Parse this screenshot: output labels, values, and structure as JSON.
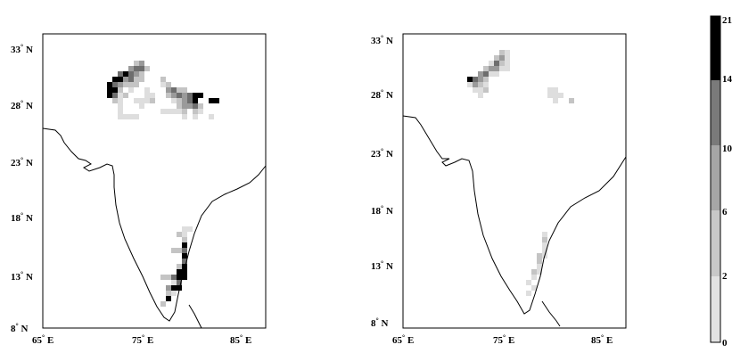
{
  "maps": [
    {
      "name": "left-map",
      "lat_labels": [
        "33",
        "28",
        "23",
        "18",
        "13",
        "8"
      ],
      "lat_suffix": "N",
      "lon_labels": [
        "65",
        "75",
        "85"
      ],
      "lon_suffix": "E",
      "degree": "°"
    },
    {
      "name": "right-map",
      "lat_labels": [
        "33",
        "28",
        "23",
        "18",
        "13",
        "8"
      ],
      "lat_suffix": "N",
      "lon_labels": [
        "65",
        "75",
        "85"
      ],
      "lon_suffix": "E",
      "degree": "°"
    }
  ],
  "colorbar": {
    "labels": [
      "21",
      "14",
      "10",
      "6",
      "2",
      "0"
    ],
    "colors": [
      "#000000",
      "#7a7a7a",
      "#a6a6a6",
      "#c8c8c8",
      "#e2e2e2",
      "#ffffff"
    ]
  }
}
